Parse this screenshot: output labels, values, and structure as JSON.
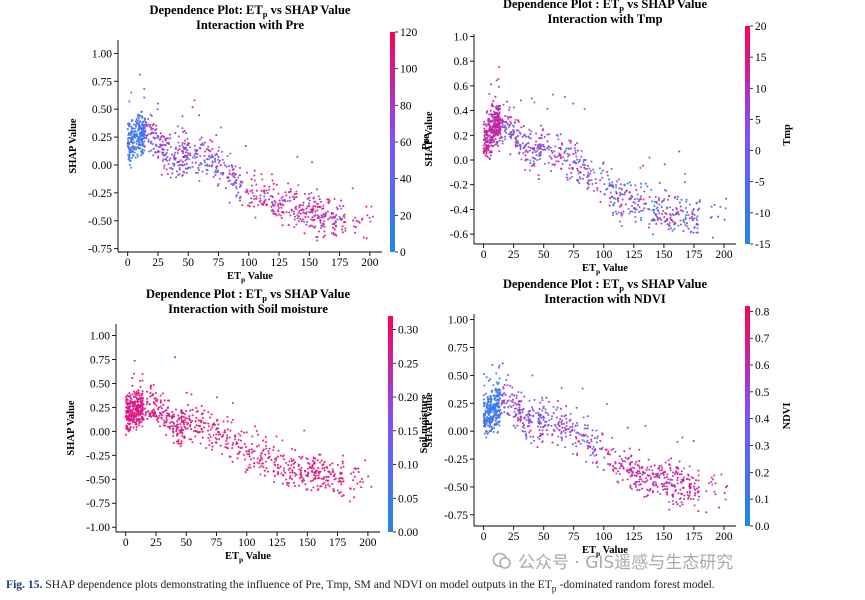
{
  "chart_data": [
    {
      "type": "scatter",
      "title": "Dependence Plot: ET",
      "title_sub": "p",
      "title_rest": " vs SHAP Value",
      "subtitle": "Interaction with Pre",
      "xlabel": "ET",
      "xlabel_sub": "p",
      "xlabel_rest": " Value",
      "ylabel": "SHAP Value",
      "colorbar_label": "Pre",
      "xlim": [
        -8,
        210
      ],
      "ylim": [
        -0.78,
        1.12
      ],
      "xticks": [
        0,
        25,
        50,
        75,
        100,
        125,
        150,
        175,
        200
      ],
      "xtick_labels": [
        "0",
        "25",
        "50",
        "75",
        "100",
        "125",
        "150",
        "175",
        "200"
      ],
      "yticks": [
        -0.75,
        -0.5,
        -0.25,
        0.0,
        0.25,
        0.5,
        0.75,
        1.0
      ],
      "ytick_labels": [
        "-0.75",
        "-0.50",
        "-0.25",
        "0.00",
        "0.25",
        "0.50",
        "0.75",
        "1.00"
      ],
      "color_range": [
        0,
        120
      ],
      "color_ticks": [
        0,
        20,
        40,
        60,
        80,
        100,
        120
      ],
      "color_tick_labels": [
        "0",
        "20",
        "40",
        "60",
        "80",
        "100",
        "120"
      ],
      "trend": [
        [
          0,
          0.18
        ],
        [
          10,
          0.28
        ],
        [
          20,
          0.27
        ],
        [
          30,
          0.12
        ],
        [
          40,
          0.05
        ],
        [
          55,
          0.1
        ],
        [
          65,
          0.08
        ],
        [
          80,
          -0.05
        ],
        [
          95,
          -0.2
        ],
        [
          110,
          -0.3
        ],
        [
          130,
          -0.36
        ],
        [
          150,
          -0.42
        ],
        [
          170,
          -0.5
        ]
      ],
      "spread": 0.13,
      "n": 950,
      "seed": 11
    },
    {
      "type": "scatter",
      "title": "Dependence Plot : ET",
      "title_sub": "p",
      "title_rest": " vs SHAP Value",
      "subtitle": "Interaction with Tmp",
      "xlabel": "ET",
      "xlabel_sub": "p",
      "xlabel_rest": " Value",
      "ylabel": "SHAP Value",
      "colorbar_label": "Tmp",
      "xlim": [
        -8,
        210
      ],
      "ylim": [
        -0.68,
        1.02
      ],
      "xticks": [
        0,
        25,
        50,
        75,
        100,
        125,
        150,
        175,
        200
      ],
      "xtick_labels": [
        "0",
        "25",
        "50",
        "75",
        "100",
        "125",
        "150",
        "175",
        "200"
      ],
      "yticks": [
        -0.6,
        -0.4,
        -0.2,
        0.0,
        0.2,
        0.4,
        0.6,
        0.8,
        1.0
      ],
      "ytick_labels": [
        "-0.6",
        "-0.4",
        "-0.2",
        "0.0",
        "0.2",
        "0.4",
        "0.6",
        "0.8",
        "1.0"
      ],
      "color_range": [
        -15,
        20
      ],
      "color_ticks": [
        -15,
        -10,
        -5,
        0,
        5,
        10,
        15,
        20
      ],
      "color_tick_labels": [
        "-15",
        "-10",
        "-5",
        "0",
        "5",
        "10",
        "15",
        "20"
      ],
      "trend": [
        [
          0,
          0.15
        ],
        [
          10,
          0.3
        ],
        [
          20,
          0.28
        ],
        [
          30,
          0.15
        ],
        [
          40,
          0.05
        ],
        [
          55,
          0.1
        ],
        [
          65,
          0.05
        ],
        [
          80,
          -0.05
        ],
        [
          95,
          -0.15
        ],
        [
          110,
          -0.3
        ],
        [
          130,
          -0.35
        ],
        [
          150,
          -0.42
        ],
        [
          170,
          -0.45
        ]
      ],
      "spread": 0.12,
      "n": 950,
      "seed": 23
    },
    {
      "type": "scatter",
      "title": "Dependence Plot : ET",
      "title_sub": "p",
      "title_rest": " vs SHAP Value",
      "subtitle": "Interaction with Soil moisture",
      "xlabel": "ET",
      "xlabel_sub": "p",
      "xlabel_rest": " Value",
      "ylabel": "SHAP Value",
      "colorbar_label": "Soil moisture",
      "xlim": [
        -8,
        210
      ],
      "ylim": [
        -1.05,
        1.12
      ],
      "xticks": [
        0,
        25,
        50,
        75,
        100,
        125,
        150,
        175,
        200
      ],
      "xtick_labels": [
        "0",
        "25",
        "50",
        "75",
        "100",
        "125",
        "150",
        "175",
        "200"
      ],
      "yticks": [
        -1.0,
        -0.75,
        -0.5,
        -0.25,
        0.0,
        0.25,
        0.5,
        0.75,
        1.0
      ],
      "ytick_labels": [
        "-1.00",
        "-0.75",
        "-0.50",
        "-0.25",
        "0.00",
        "0.25",
        "0.50",
        "0.75",
        "1.00"
      ],
      "color_range": [
        0,
        0.32
      ],
      "color_ticks": [
        0,
        0.05,
        0.1,
        0.15,
        0.2,
        0.25,
        0.3
      ],
      "color_tick_labels": [
        "0.00",
        "0.05",
        "0.10",
        "0.15",
        "0.20",
        "0.25",
        "0.30"
      ],
      "trend": [
        [
          0,
          0.15
        ],
        [
          10,
          0.25
        ],
        [
          20,
          0.28
        ],
        [
          30,
          0.18
        ],
        [
          40,
          0.05
        ],
        [
          55,
          0.08
        ],
        [
          70,
          0.02
        ],
        [
          85,
          -0.08
        ],
        [
          100,
          -0.2
        ],
        [
          120,
          -0.32
        ],
        [
          140,
          -0.38
        ],
        [
          160,
          -0.45
        ],
        [
          175,
          -0.5
        ]
      ],
      "spread": 0.14,
      "n": 950,
      "seed": 37
    },
    {
      "type": "scatter",
      "title": "Dependence Plot : ET",
      "title_sub": "p",
      "title_rest": " vs SHAP Value",
      "subtitle": "Interaction with NDVI",
      "xlabel": "ET",
      "xlabel_sub": "p",
      "xlabel_rest": " Value",
      "ylabel": "SHAP Value",
      "colorbar_label": "NDVI",
      "xlim": [
        -8,
        210
      ],
      "ylim": [
        -0.85,
        1.05
      ],
      "xticks": [
        0,
        25,
        50,
        75,
        100,
        125,
        150,
        175,
        200
      ],
      "xtick_labels": [
        "0",
        "25",
        "50",
        "75",
        "100",
        "125",
        "150",
        "175",
        "200"
      ],
      "yticks": [
        -0.75,
        -0.5,
        -0.25,
        0.0,
        0.25,
        0.5,
        0.75,
        1.0
      ],
      "ytick_labels": [
        "-0.75",
        "-0.50",
        "-0.25",
        "0.00",
        "0.25",
        "0.50",
        "0.75",
        "1.00"
      ],
      "color_range": [
        0,
        0.82
      ],
      "color_ticks": [
        0,
        0.1,
        0.2,
        0.3,
        0.4,
        0.5,
        0.6,
        0.7,
        0.8
      ],
      "color_tick_labels": [
        "0.0",
        "0.1",
        "0.2",
        "0.3",
        "0.4",
        "0.5",
        "0.6",
        "0.7",
        "0.8"
      ],
      "trend": [
        [
          0,
          0.12
        ],
        [
          10,
          0.22
        ],
        [
          20,
          0.3
        ],
        [
          30,
          0.15
        ],
        [
          40,
          0.05
        ],
        [
          55,
          0.1
        ],
        [
          70,
          0.02
        ],
        [
          85,
          -0.08
        ],
        [
          100,
          -0.2
        ],
        [
          120,
          -0.35
        ],
        [
          140,
          -0.42
        ],
        [
          160,
          -0.48
        ],
        [
          175,
          -0.5
        ]
      ],
      "spread": 0.13,
      "n": 950,
      "seed": 53
    }
  ],
  "caption": {
    "label": "Fig. 15.",
    "text_before": " SHAP dependence plots demonstrating the influence of Pre, Tmp, SM and NDVI on model outputs in the ET",
    "sub": "p",
    "text_after": " -dominated random forest model."
  },
  "watermark": {
    "text": "公众号 · GIS遥感与生态研究"
  },
  "colors": {
    "low": "#1e88e5",
    "mid": "#7c52ff",
    "high": "#ff0052",
    "axis": "#000000"
  }
}
